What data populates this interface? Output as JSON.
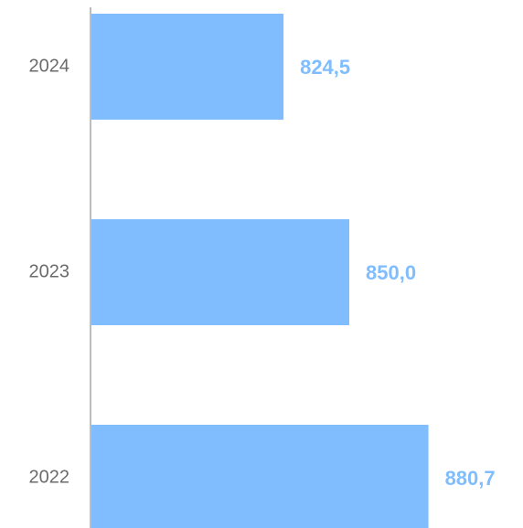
{
  "chart_data": {
    "type": "bar",
    "orientation": "horizontal",
    "categories": [
      "2024",
      "2023",
      "2022"
    ],
    "values": [
      824.5,
      850.0,
      880.7
    ],
    "value_labels": [
      "824,5",
      "850,0",
      "880,7"
    ],
    "color": "#80bdff",
    "xlim": [
      750,
      900
    ]
  }
}
